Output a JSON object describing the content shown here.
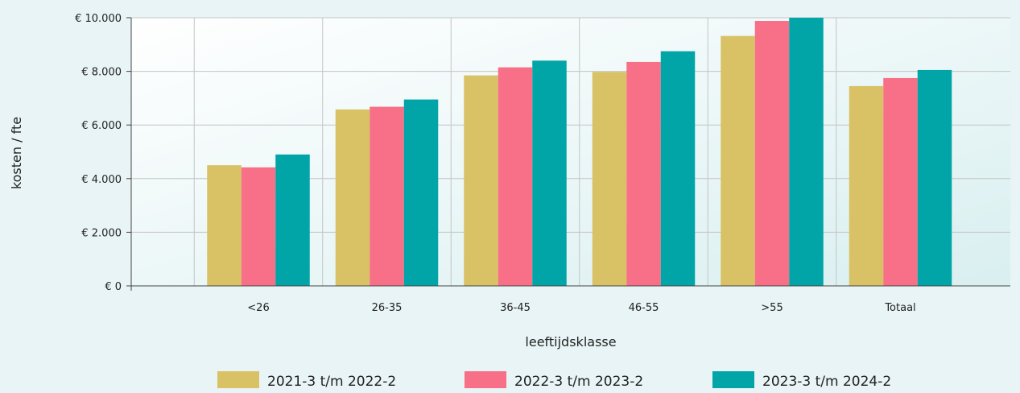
{
  "chart_data": {
    "type": "bar",
    "title": "",
    "xlabel": "leeftijdsklasse",
    "ylabel": "kosten / fte",
    "categories": [
      "<26",
      "26-35",
      "36-45",
      "46-55",
      ">55",
      "Totaal"
    ],
    "series": [
      {
        "name": "2021-3 t/m 2022-2",
        "color": "#d9c265",
        "values": [
          4500,
          6580,
          7850,
          7980,
          9320,
          7450
        ]
      },
      {
        "name": "2022-3 t/m 2023-2",
        "color": "#f77087",
        "values": [
          4420,
          6680,
          8150,
          8350,
          9880,
          7750
        ]
      },
      {
        "name": "2023-3 t/m 2024-2",
        "color": "#01a5a7",
        "values": [
          4900,
          6950,
          8400,
          8750,
          10000,
          8050
        ]
      }
    ],
    "ylim": [
      0,
      10000
    ],
    "yticks": [
      0,
      2000,
      4000,
      6000,
      8000,
      10000
    ],
    "ytick_labels": [
      "€ 0",
      "€ 2.000",
      "€ 4.000",
      "€ 6.000",
      "€ 8.000",
      "€ 10.000"
    ],
    "grid": true,
    "legend_position": "bottom"
  }
}
